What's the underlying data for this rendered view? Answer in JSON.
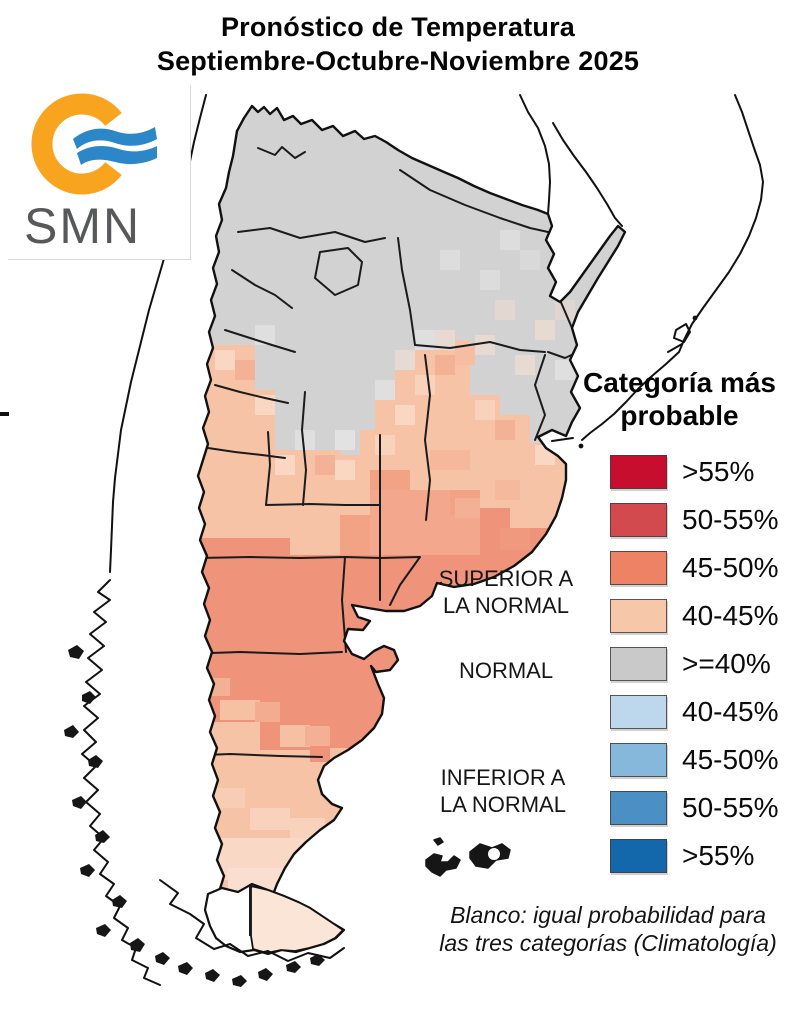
{
  "title": {
    "line1": "Pronóstico de Temperatura",
    "line2": "Septiembre-Octubre-Noviembre 2025"
  },
  "logo": {
    "text": "SMN",
    "ring_color": "#F9A41F",
    "wave_color": "#2B87C8",
    "text_color": "#57585A"
  },
  "legend": {
    "title_line1": "Categoría más",
    "title_line2": "probable",
    "items": [
      {
        "label": ">55%",
        "color": "#C70E2F",
        "category": "superior a la normal"
      },
      {
        "label": "50-55%",
        "color": "#D2494E",
        "category": "superior a la normal"
      },
      {
        "label": "45-50%",
        "color": "#EE8265",
        "category": "superior a la normal"
      },
      {
        "label": "40-45%",
        "color": "#F7C7AA",
        "category": "superior a la normal"
      },
      {
        "label": ">=40%",
        "color": "#C9C9C9",
        "category": "normal"
      },
      {
        "label": "40-45%",
        "color": "#BDD8EC",
        "category": "inferior a la normal"
      },
      {
        "label": "45-50%",
        "color": "#86B8DB",
        "category": "inferior a la normal"
      },
      {
        "label": "50-55%",
        "color": "#4A90C5",
        "category": "inferior a la normal"
      },
      {
        "label": ">55%",
        "color": "#1268AB",
        "category": "inferior a la normal"
      }
    ]
  },
  "categories": {
    "superior_line1": "SUPERIOR A",
    "superior_line2": "LA NORMAL",
    "normal": "NORMAL",
    "inferior_line1": "INFERIOR A",
    "inferior_line2": "LA NORMAL"
  },
  "footnote": {
    "line1": "Blanco: igual probabilidad para",
    "line2": "las tres categorías (Climatología)"
  },
  "map_colors": {
    "normal_gray": "#D2D2D2",
    "superior_40_45": "#F6C3A6",
    "superior_45_50": "#F0937B",
    "tierra_del_fuego": "#FBE5D7",
    "outline": "#111111"
  }
}
